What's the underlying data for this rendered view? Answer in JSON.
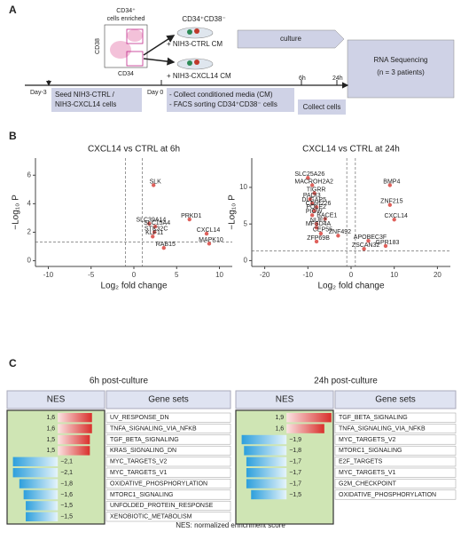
{
  "panel_labels": [
    "A",
    "B",
    "C"
  ],
  "diagram": {
    "flow_title": [
      "CD34⁺",
      "cells enriched"
    ],
    "flow_y_label": "CD38",
    "flow_x_label": "CD34",
    "population": "CD34⁺CD38⁻",
    "conditions": [
      "+ NIH3-CTRL CM",
      "+ NIH3-CXCL14 CM"
    ],
    "culture": "culture",
    "readout": [
      "RNA Sequencing",
      "(n = 3 patients)"
    ],
    "timepoints": [
      "Day-3",
      "Day 0",
      "6h",
      "24h"
    ],
    "steps": [
      [
        "Seed NIH3-CTRL /",
        "NIH3-CXCL14 cells"
      ],
      [
        "- Collect conditioned media (CM)",
        "- FACS sorting CD34⁺CD38⁻ cells"
      ],
      [
        "Collect cells"
      ]
    ]
  },
  "chart_data": [
    {
      "type": "scatter",
      "title": "CXCL14 vs CTRL at 6h",
      "x_label": "Log₂ fold change",
      "y_label": "−Log₁₀ P",
      "xlim": [
        -11.5,
        11.5
      ],
      "ylim": [
        -0.4,
        7.2
      ],
      "xticks": [
        -10,
        -5,
        0,
        5,
        10
      ],
      "yticks": [
        0,
        2,
        4,
        6
      ],
      "vlines": [
        -1,
        1
      ],
      "hline": 1.3,
      "color": "#d9453f",
      "labels": [
        "SLK",
        "PRKD1",
        "SLC39A14",
        "SLC15A4",
        "STK32C",
        "KLF11",
        "CXCL14",
        "RAB15",
        "MAPK10"
      ],
      "x": [
        2.3,
        6.5,
        1.8,
        2.5,
        2.4,
        2.2,
        8.5,
        3.5,
        8.8
      ],
      "values": [
        5.3,
        2.9,
        2.6,
        2.4,
        2.0,
        1.7,
        1.9,
        0.9,
        1.2
      ]
    },
    {
      "type": "scatter",
      "title": "CXCL14 vs CTRL at 24h",
      "x_label": "Log₂ fold change",
      "y_label": "−Log₁₀ P",
      "xlim": [
        -23,
        23
      ],
      "ylim": [
        -0.8,
        14
      ],
      "xticks": [
        -20,
        -10,
        0,
        10,
        20
      ],
      "yticks": [
        0,
        5,
        10
      ],
      "vlines": [
        -1,
        1
      ],
      "hline": 1.3,
      "color": "#d9453f",
      "labels": [
        "SLC25A26",
        "MACROH2A2",
        "TIGRR",
        "PADI3",
        "DLGAP5",
        "C1orf226",
        "POLE2",
        "PIGW",
        "BACE1",
        "NUF2",
        "MFSD4A",
        "CEP55",
        "ZNF492",
        "APOBEC3F",
        "ZFP69B",
        "GPR183",
        "ZSCAN32",
        "BMP4",
        "ZNF215",
        "CXCL14"
      ],
      "x": [
        -10,
        -9,
        -8.5,
        -9.5,
        -9,
        -8,
        -8.5,
        -9,
        -6,
        -8,
        -8,
        -7,
        -3,
        4,
        -8,
        8,
        3,
        9,
        9,
        10
      ],
      "values": [
        11.3,
        10.3,
        9.2,
        8.4,
        7.8,
        7.3,
        6.8,
        6.2,
        5.7,
        5.0,
        4.5,
        3.7,
        3.4,
        2.7,
        2.6,
        2.0,
        1.6,
        10.3,
        7.6,
        5.6
      ]
    }
  ],
  "tables": [
    {
      "title": "6h post-culture",
      "headers": [
        "NES",
        "Gene sets"
      ],
      "nes": [
        1.6,
        1.6,
        1.5,
        1.5,
        -2.1,
        -2.1,
        -1.8,
        -1.6,
        -1.5,
        -1.5
      ],
      "value_labels": [
        "1,6",
        "1,6",
        "1,5",
        "1,5",
        "−2,1",
        "−2,1",
        "−1,8",
        "−1,6",
        "−1,5",
        "−1,5"
      ],
      "gene_sets": [
        "UV_RESPONSE_DN",
        "TNFA_SIGNALING_VIA_NFKB",
        "TGF_BETA_SIGNALING",
        "KRAS_SIGNALING_DN",
        "MYC_TARGETS_V2",
        "MYC_TARGETS_V1",
        "OXIDATIVE_PHOSPHORYLATION",
        "MTORC1_SIGNALING",
        "UNFOLDED_PROTEIN_RESPONSE",
        "XENOBIOTIC_METABOLISM"
      ]
    },
    {
      "title": "24h post-culture",
      "headers": [
        "NES",
        "Gene sets"
      ],
      "nes": [
        1.9,
        1.6,
        -1.9,
        -1.8,
        -1.7,
        -1.7,
        -1.7,
        -1.5
      ],
      "value_labels": [
        "1,9",
        "1,6",
        "−1,9",
        "−1,8",
        "−1,7",
        "−1,7",
        "−1,7",
        "−1,5"
      ],
      "gene_sets": [
        "TGF_BETA_SIGNALING",
        "TNFA_SIGNALING_VIA_NFKB",
        "MYC_TARGETS_V2",
        "MTORC1_SIGNALING",
        "E2F_TARGETS",
        "MYC_TARGETS_V1",
        "G2M_CHECKPOINT",
        "OXIDATIVE_PHOSPHORYLATION"
      ]
    }
  ],
  "footnote": "NES: normalized enrichment score"
}
